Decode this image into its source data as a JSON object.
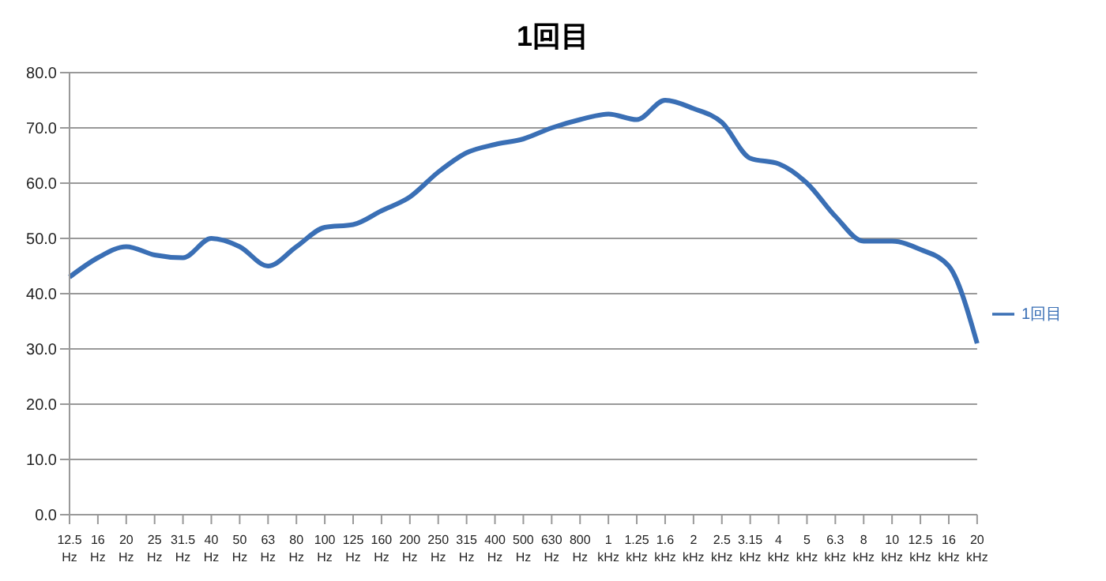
{
  "chart_data": {
    "type": "line",
    "title": "1回目",
    "categories": [
      "12.5 Hz",
      "16 Hz",
      "20 Hz",
      "25 Hz",
      "31.5 Hz",
      "40 Hz",
      "50 Hz",
      "63 Hz",
      "80 Hz",
      "100 Hz",
      "125 Hz",
      "160 Hz",
      "200 Hz",
      "250 Hz",
      "315 Hz",
      "400 Hz",
      "500 Hz",
      "630 Hz",
      "800 Hz",
      "1 kHz",
      "1.25 kHz",
      "1.6 kHz",
      "2 kHz",
      "2.5 kHz",
      "3.15 kHz",
      "4 kHz",
      "5 kHz",
      "6.3 kHz",
      "8 kHz",
      "10 kHz",
      "12.5 kHz",
      "16 kHz",
      "20 kHz"
    ],
    "series": [
      {
        "name": "1回目",
        "color": "#3a6fb5",
        "values": [
          43,
          46.5,
          48.5,
          47,
          46.5,
          50,
          48.5,
          45,
          48.5,
          52,
          52.5,
          55,
          57.5,
          62,
          65.5,
          67,
          68,
          70,
          71.5,
          72.5,
          71.5,
          75,
          73.5,
          71,
          64.5,
          63.5,
          60,
          54,
          49.5,
          49.5,
          48,
          45,
          31
        ]
      }
    ],
    "ylim": [
      0,
      80
    ],
    "yticks": [
      {
        "value": 0,
        "label": "0.0"
      },
      {
        "value": 10,
        "label": "10.0"
      },
      {
        "value": 20,
        "label": "20.0"
      },
      {
        "value": 30,
        "label": "30.0"
      },
      {
        "value": 40,
        "label": "40.0"
      },
      {
        "value": 50,
        "label": "50.0"
      },
      {
        "value": 60,
        "label": "60.0"
      },
      {
        "value": 70,
        "label": "70.0"
      },
      {
        "value": 80,
        "label": "80.0"
      }
    ],
    "grid": "y",
    "legend": "right",
    "marker": "none",
    "line_style": "solid"
  }
}
